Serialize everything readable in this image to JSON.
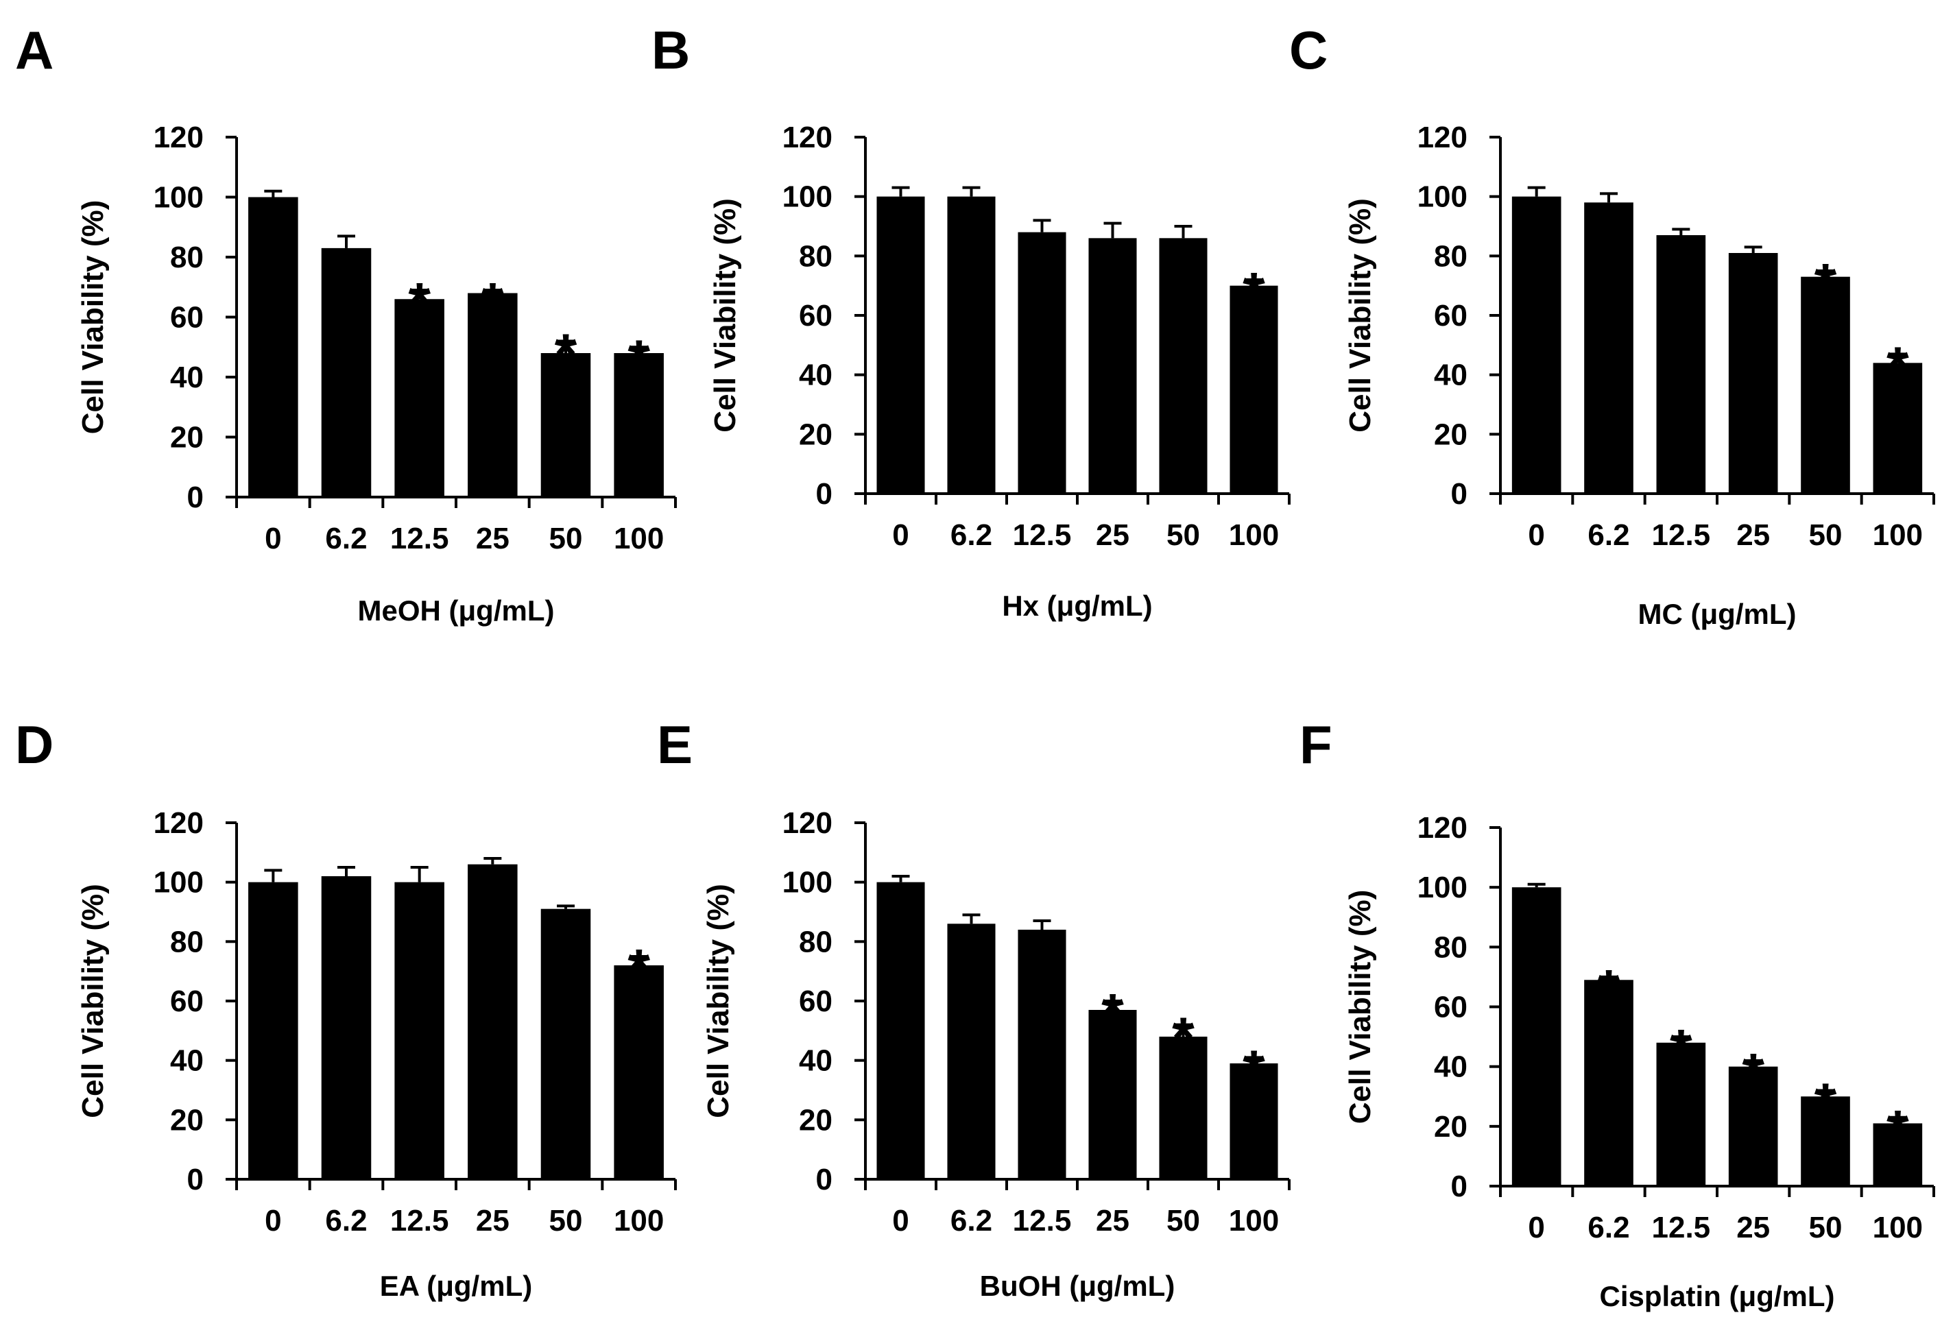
{
  "figure": {
    "colors": {
      "bar": "#000000",
      "axis": "#000000",
      "background": "#ffffff"
    }
  },
  "chart_data": [
    {
      "panel": "A",
      "type": "bar",
      "categories": [
        "0",
        "6.2",
        "12.5",
        "25",
        "50",
        "100"
      ],
      "values": [
        100,
        83,
        66,
        68,
        48,
        48
      ],
      "errors": [
        2,
        4,
        3,
        1,
        4,
        2
      ],
      "significant": [
        false,
        false,
        true,
        true,
        true,
        true
      ],
      "significance_marker": "*",
      "xlabel": "MeOH (μg/mL)",
      "ylabel": "Cell Viability  (%)",
      "ylim": [
        0,
        120
      ],
      "yticks": [
        "0",
        "20",
        "40",
        "60",
        "80",
        "100",
        "120"
      ]
    },
    {
      "panel": "B",
      "type": "bar",
      "categories": [
        "0",
        "6.2",
        "12.5",
        "25",
        "50",
        "100"
      ],
      "values": [
        100,
        100,
        88,
        86,
        86,
        70
      ],
      "errors": [
        3,
        3,
        4,
        5,
        4,
        2
      ],
      "significant": [
        false,
        false,
        false,
        false,
        false,
        true
      ],
      "significance_marker": "*",
      "xlabel": "Hx (μg/mL)",
      "ylabel": "Cell Viability  (%)",
      "ylim": [
        0,
        120
      ],
      "yticks": [
        "0",
        "20",
        "40",
        "60",
        "80",
        "100",
        "120"
      ]
    },
    {
      "panel": "C",
      "type": "bar",
      "categories": [
        "0",
        "6.2",
        "12.5",
        "25",
        "50",
        "100"
      ],
      "values": [
        100,
        98,
        87,
        81,
        73,
        44
      ],
      "errors": [
        3,
        3,
        2,
        2,
        2,
        3
      ],
      "significant": [
        false,
        false,
        false,
        false,
        true,
        true
      ],
      "significance_marker": "*",
      "xlabel": "MC (μg/mL)",
      "ylabel": "Cell Viability  (%)",
      "ylim": [
        0,
        120
      ],
      "yticks": [
        "0",
        "20",
        "40",
        "60",
        "80",
        "100",
        "120"
      ]
    },
    {
      "panel": "D",
      "type": "bar",
      "categories": [
        "0",
        "6.2",
        "12.5",
        "25",
        "50",
        "100"
      ],
      "values": [
        100,
        102,
        100,
        106,
        91,
        72
      ],
      "errors": [
        4,
        3,
        5,
        2,
        1,
        3
      ],
      "significant": [
        false,
        false,
        false,
        false,
        false,
        true
      ],
      "significance_marker": "*",
      "xlabel": "EA (μg/mL)",
      "ylabel": "Cell Viability  (%)",
      "ylim": [
        0,
        120
      ],
      "yticks": [
        "0",
        "20",
        "40",
        "60",
        "80",
        "100",
        "120"
      ]
    },
    {
      "panel": "E",
      "type": "bar",
      "categories": [
        "0",
        "6.2",
        "12.5",
        "25",
        "50",
        "100"
      ],
      "values": [
        100,
        86,
        84,
        57,
        48,
        39
      ],
      "errors": [
        2,
        3,
        3,
        3,
        4,
        2
      ],
      "significant": [
        false,
        false,
        false,
        true,
        true,
        true
      ],
      "significance_marker": "*",
      "xlabel": "BuOH (μg/mL)",
      "ylabel": "Cell Viability  (%)",
      "ylim": [
        0,
        120
      ],
      "yticks": [
        "0",
        "20",
        "40",
        "60",
        "80",
        "100",
        "120"
      ]
    },
    {
      "panel": "F",
      "type": "bar",
      "categories": [
        "0",
        "6.2",
        "12.5",
        "25",
        "50",
        "100"
      ],
      "values": [
        100,
        69,
        48,
        40,
        30,
        21
      ],
      "errors": [
        1,
        1,
        2,
        2,
        2,
        2
      ],
      "significant": [
        false,
        true,
        true,
        true,
        true,
        true
      ],
      "significance_marker": "*",
      "xlabel": "Cisplatin (μg/mL)",
      "ylabel": "Cell Viability  (%)",
      "ylim": [
        0,
        120
      ],
      "yticks": [
        "0",
        "20",
        "40",
        "60",
        "80",
        "100",
        "120"
      ]
    }
  ]
}
